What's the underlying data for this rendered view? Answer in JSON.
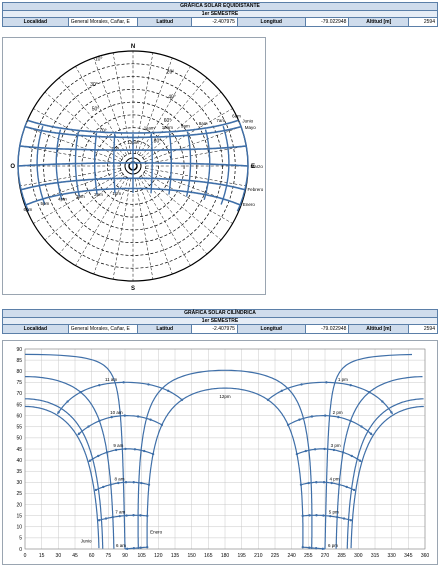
{
  "header1": {
    "title": "GRÁFICA SOLAR EQUIDISTANTE",
    "semester": "1er SEMESTRE",
    "locality_label": "Localidad",
    "locality_value": "General Morales, Cañar, E",
    "lat_label": "Latitud",
    "lat_value": "-2.407975",
    "lon_label": "Longitud",
    "lon_value": "-79.022948",
    "alt_label": "Altitud [m]",
    "alt_value": "2594"
  },
  "header2": {
    "title": "GRÁFICA SOLAR CILÍNDRICA",
    "semester": "1er SEMESTRE",
    "locality_label": "Localidad",
    "locality_value": "General Morales, Cañar, E",
    "lat_label": "Latitud",
    "lat_value": "-2.407975",
    "lon_label": "Longitud",
    "lon_value": "-79.022948",
    "alt_label": "Altitud [m]",
    "alt_value": "2594"
  },
  "colors": {
    "curve": "#3f6fa8",
    "grid": "#000000",
    "header": "#cfdcec"
  },
  "chart_data": [
    {
      "type": "polar",
      "north_label": "N",
      "south_label": "S",
      "west_label": "O",
      "east_label": "E",
      "ring_altitudes": [
        0,
        10,
        20,
        30,
        40,
        50,
        60,
        70,
        80
      ],
      "azimuth_step": 10,
      "ring_labels": [
        "10°",
        "20°",
        "30°",
        "40°",
        "50°",
        "60°",
        "70°",
        "80°",
        "90°"
      ],
      "month_labels": [
        "Junio",
        "Mayo",
        "Marzo",
        "Febrero",
        "Enero"
      ],
      "hour_labels_am": [
        "6am",
        "7am",
        "8am",
        "9am",
        "10am",
        "11am"
      ],
      "hour_labels_pm": [
        "1pm",
        "2pm",
        "3pm",
        "4pm",
        "5pm",
        "6pm"
      ],
      "noon_label": "12pm",
      "sun_paths": [
        {
          "name": "Junio",
          "declination": 23.44
        },
        {
          "name": "Mayo",
          "declination": 20
        },
        {
          "name": "Abril",
          "declination": 10
        },
        {
          "name": "Marzo",
          "declination": 0
        },
        {
          "name": "Febrero",
          "declination": -12
        },
        {
          "name": "Enero",
          "declination": -20
        }
      ],
      "latitude": -2.407975
    },
    {
      "type": "line",
      "x_ticks": [
        0,
        15,
        30,
        45,
        60,
        75,
        90,
        105,
        120,
        135,
        150,
        165,
        180,
        195,
        210,
        225,
        240,
        255,
        270,
        285,
        300,
        315,
        330,
        345,
        360
      ],
      "y_ticks": [
        0,
        5,
        10,
        15,
        20,
        25,
        30,
        35,
        40,
        45,
        50,
        55,
        60,
        65,
        70,
        75,
        80,
        85,
        90
      ],
      "xlim": [
        0,
        360
      ],
      "ylim": [
        0,
        90
      ],
      "grid": true,
      "hour_labels_am": [
        "11 am",
        "10 am",
        "9 am",
        "8 am",
        "7 am",
        "6 am"
      ],
      "hour_labels_pm": [
        "1 pm",
        "2 pm",
        "3 pm",
        "4 pm",
        "5 pm",
        "6 pm"
      ],
      "noon_label": "12pm",
      "month_labels": [
        "Junio",
        "Enero"
      ],
      "sun_paths": [
        {
          "name": "Junio",
          "declination": 23.44
        },
        {
          "name": "Mayo",
          "declination": 20
        },
        {
          "name": "Abril",
          "declination": 10
        },
        {
          "name": "Marzo",
          "declination": 0
        },
        {
          "name": "Febrero",
          "declination": -12
        },
        {
          "name": "Enero",
          "declination": -20
        }
      ],
      "latitude": -2.407975
    }
  ]
}
